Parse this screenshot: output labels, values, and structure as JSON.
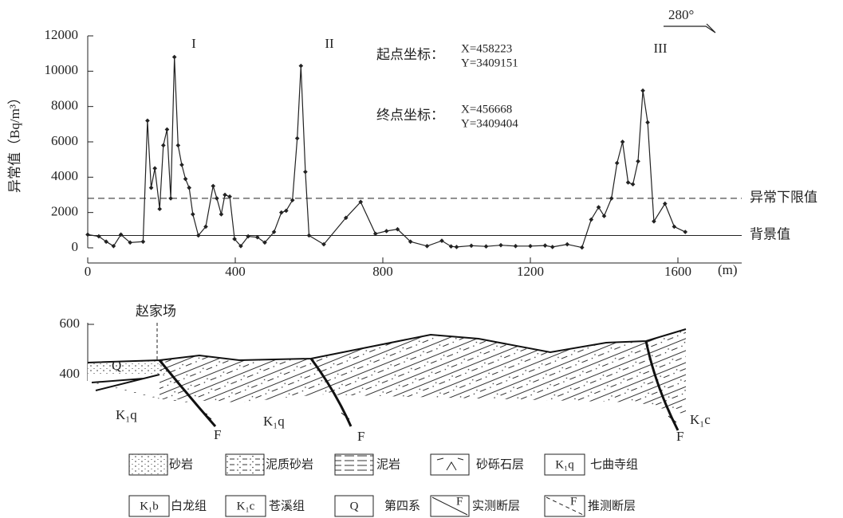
{
  "chart_data": {
    "type": "line",
    "y_label": "异常值（Bq/m³）",
    "x_unit": "(m)",
    "direction": "280°",
    "annotations": [
      "I",
      "II",
      "III"
    ],
    "start_label": "起点坐标：",
    "start_x": "X=458223",
    "start_y": "Y=3409151",
    "end_label": "终点坐标：",
    "end_x": "X=456668",
    "end_y": "Y=3409404",
    "x": [
      0,
      30,
      50,
      70,
      90,
      115,
      150,
      162,
      172,
      182,
      195,
      205,
      215,
      225,
      235,
      245,
      255,
      265,
      275,
      285,
      300,
      320,
      340,
      350,
      362,
      372,
      385,
      398,
      415,
      435,
      460,
      480,
      505,
      525,
      538,
      555,
      568,
      578,
      590,
      600,
      640,
      700,
      740,
      780,
      810,
      840,
      875,
      920,
      960,
      985,
      1000,
      1040,
      1080,
      1120,
      1160,
      1200,
      1240,
      1260,
      1300,
      1340,
      1365,
      1385,
      1400,
      1420,
      1435,
      1450,
      1465,
      1478,
      1492,
      1505,
      1518,
      1535,
      1565,
      1590,
      1620
    ],
    "values": [
      750,
      650,
      350,
      100,
      750,
      300,
      350,
      7200,
      3400,
      4500,
      2200,
      5800,
      6700,
      2800,
      10800,
      5800,
      4700,
      3900,
      3400,
      1900,
      700,
      1200,
      3500,
      2800,
      1900,
      3000,
      2900,
      500,
      100,
      650,
      600,
      300,
      900,
      2000,
      2100,
      2700,
      6200,
      10300,
      4300,
      700,
      200,
      1700,
      2600,
      800,
      950,
      1050,
      350,
      100,
      400,
      80,
      50,
      120,
      80,
      150,
      100,
      100,
      130,
      50,
      200,
      20,
      1600,
      2300,
      1800,
      2800,
      4800,
      6000,
      3700,
      3600,
      4900,
      8900,
      7100,
      1500,
      2500,
      1200,
      900
    ],
    "color": "#222222",
    "xlim": [
      0,
      1773
    ],
    "xticks": [
      0,
      400,
      800,
      1200,
      1600
    ],
    "ylim": [
      0,
      12000
    ],
    "yticks": [
      0,
      2000,
      4000,
      6000,
      8000,
      10000,
      12000
    ],
    "reference_lines": [
      {
        "value": 2800,
        "label": "异常下限值",
        "style": "dashed"
      },
      {
        "value": 700,
        "label": "背景值",
        "style": "solid"
      }
    ]
  },
  "cross_section": {
    "yticks": [
      "600",
      "400"
    ],
    "place": "赵家场",
    "labels": [
      "Q",
      "K₁q",
      "K₁q",
      "K₁c",
      "F",
      "F",
      "F"
    ],
    "legend": [
      {
        "label": "砂岩"
      },
      {
        "label": "泥质砂岩"
      },
      {
        "label": "泥岩"
      },
      {
        "label": "砂砾石层"
      },
      {
        "symbol": "K₁q",
        "label": "七曲寺组"
      },
      {
        "symbol": "K₁b",
        "label": "白龙组"
      },
      {
        "symbol": "K₁c",
        "label": "苍溪组"
      },
      {
        "symbol": "Q",
        "label": "第四系"
      },
      {
        "symbol": "F",
        "label": "实测断层"
      },
      {
        "symbol": "F",
        "label": "推测断层"
      }
    ]
  }
}
